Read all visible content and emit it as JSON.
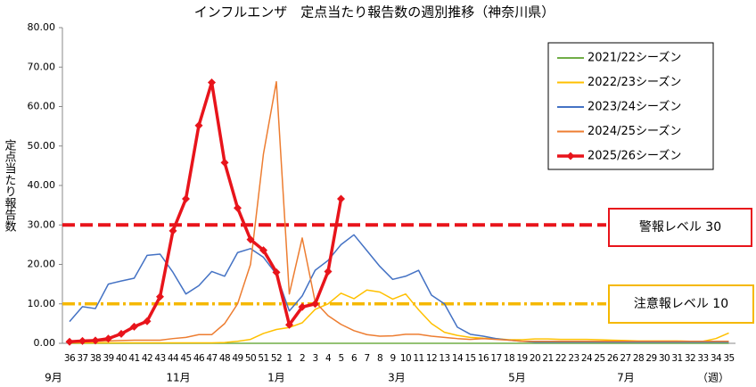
{
  "chart_data": {
    "type": "line",
    "title": "インフルエンザ　定点当たり報告数の週別推移（神奈川県）",
    "y_label": "定点当たり報告数",
    "categories": [
      "36",
      "37",
      "38",
      "39",
      "40",
      "41",
      "42",
      "43",
      "44",
      "45",
      "46",
      "47",
      "48",
      "49",
      "50",
      "51",
      "52",
      "1",
      "2",
      "3",
      "4",
      "5",
      "6",
      "7",
      "8",
      "9",
      "10",
      "11",
      "12",
      "13",
      "14",
      "15",
      "16",
      "17",
      "18",
      "19",
      "20",
      "21",
      "22",
      "23",
      "24",
      "25",
      "26",
      "27",
      "28",
      "29",
      "30",
      "31",
      "32",
      "33",
      "34",
      "35"
    ],
    "month_labels": [
      "9月",
      "11月",
      "1月",
      "3月",
      "5月",
      "7月",
      "（週）"
    ],
    "ylim": [
      0,
      80
    ],
    "yticks": [
      {
        "value": 0,
        "label": "0.00"
      },
      {
        "value": 10,
        "label": "10.00"
      },
      {
        "value": 20,
        "label": "20.00"
      },
      {
        "value": 30,
        "label": "30.00"
      },
      {
        "value": 40,
        "label": "40.00"
      },
      {
        "value": 50,
        "label": "50.00"
      },
      {
        "value": 60,
        "label": "60.00"
      },
      {
        "value": 70,
        "label": "70.00"
      },
      {
        "value": 80,
        "label": "80.00"
      }
    ],
    "reference_lines": [
      {
        "value": 30,
        "label": "警報レベル 30",
        "color": "#e8141b"
      },
      {
        "value": 10,
        "label": "注意報レベル 10",
        "color": "#f5b800"
      }
    ],
    "series": [
      {
        "name": "2021/22シーズン",
        "color": "#70ad47",
        "values": [
          0,
          0,
          0,
          0,
          0,
          0,
          0,
          0,
          0,
          0,
          0,
          0,
          0,
          0,
          0,
          0,
          0,
          0,
          0,
          0,
          0,
          0,
          0,
          0,
          0,
          0,
          0,
          0,
          0,
          0,
          0,
          0,
          0,
          0,
          0,
          0,
          0,
          0,
          0,
          0,
          0,
          0,
          0,
          0,
          0,
          0,
          0,
          0,
          0,
          0,
          0,
          0
        ]
      },
      {
        "name": "2022/23シーズン",
        "color": "#ffc000",
        "values": [
          0.1,
          0.1,
          0.1,
          0.1,
          0.1,
          0.1,
          0.1,
          0.1,
          0.1,
          0.1,
          0.1,
          0.1,
          0.2,
          0.5,
          1,
          2.5,
          3.5,
          4,
          5.2,
          8.6,
          10,
          12.7,
          11.3,
          13.5,
          13,
          11.2,
          12.5,
          8.5,
          5,
          2.8,
          2,
          1.5,
          1.3,
          1.2,
          0.9,
          0.9,
          1.1,
          1.1,
          1,
          1,
          1,
          0.9,
          0.8,
          0.7,
          0.6,
          0.6,
          0.6,
          0.6,
          0.5,
          0.5,
          1.2,
          2.6
        ]
      },
      {
        "name": "2023/24シーズン",
        "color": "#4472c4",
        "values": [
          5.5,
          9.3,
          8.8,
          15,
          15.8,
          16.5,
          22.3,
          22.6,
          18,
          12.5,
          14.6,
          18.2,
          17,
          23,
          24,
          21.8,
          17.5,
          8.2,
          12,
          18.5,
          21,
          25,
          27.5,
          23.5,
          19.5,
          16.2,
          17,
          18.5,
          12.2,
          10,
          4.1,
          2.3,
          1.8,
          1.2,
          0.8,
          0.5,
          0.3,
          0.3,
          0.3,
          0.3,
          0.3,
          0.3,
          0.3,
          0.3,
          0.3,
          0.3,
          0.3,
          0.3,
          0.3,
          0.3,
          0.3,
          0.3
        ]
      },
      {
        "name": "2024/25シーズン",
        "color": "#ed7d31",
        "values": [
          0.2,
          0.4,
          0.5,
          0.6,
          0.7,
          0.8,
          0.8,
          0.8,
          1.2,
          1.5,
          2.2,
          2.2,
          5,
          10,
          20,
          48,
          66.3,
          12.5,
          26.7,
          10.5,
          7,
          4.8,
          3.2,
          2.2,
          1.8,
          1.9,
          2.3,
          2.3,
          1.8,
          1.5,
          1.2,
          1,
          1.2,
          1,
          0.8,
          0.5,
          0.5,
          0.5,
          0.5,
          0.5,
          0.5,
          0.5,
          0.5,
          0.5,
          0.5,
          0.5,
          0.5,
          0.5,
          0.5,
          0.5,
          0.5,
          0.5
        ]
      },
      {
        "name": "2025/26シーズン",
        "color": "#e8141b",
        "values": [
          0.4,
          0.6,
          0.7,
          1.2,
          2.4,
          4.2,
          5.6,
          11.8,
          28.5,
          36.6,
          55.2,
          66.1,
          45.8,
          34.3,
          26.3,
          23.6,
          18,
          4.7,
          9.2,
          10,
          18.2,
          36.6,
          null,
          null,
          null,
          null,
          null,
          null,
          null,
          null,
          null,
          null,
          null,
          null,
          null,
          null,
          null,
          null,
          null,
          null,
          null,
          null,
          null,
          null,
          null,
          null,
          null,
          null,
          null,
          null,
          null,
          null
        ]
      }
    ]
  }
}
